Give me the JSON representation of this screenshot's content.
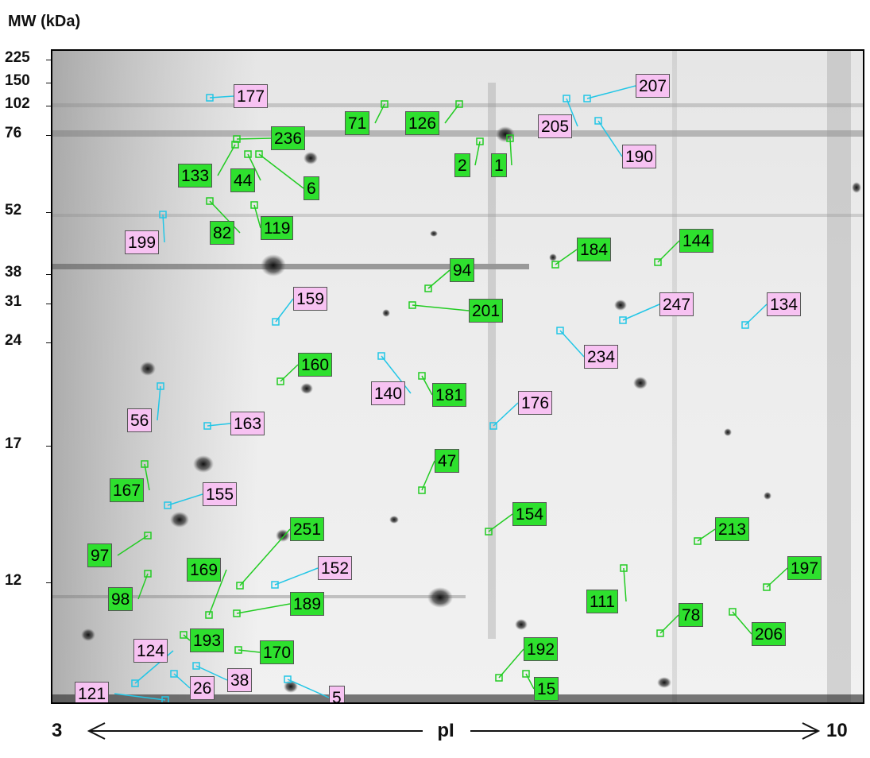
{
  "figure": {
    "y_axis_title": "MW (kDa)",
    "x_axis_title": "pI",
    "x_axis_left": "3",
    "x_axis_right": "10",
    "mw_markers": [
      "225",
      "150",
      "102",
      "76",
      "52",
      "38",
      "31",
      "24",
      "17",
      "12"
    ],
    "colors": {
      "green_label": "#2ee02e",
      "pink_label": "#f7c2f2",
      "green_line": "#22cc22",
      "cyan_line": "#22c6e6"
    },
    "spots": [
      {
        "id": "177",
        "color": "pink"
      },
      {
        "id": "71",
        "color": "green"
      },
      {
        "id": "126",
        "color": "green"
      },
      {
        "id": "207",
        "color": "pink"
      },
      {
        "id": "205",
        "color": "pink"
      },
      {
        "id": "190",
        "color": "pink"
      },
      {
        "id": "236",
        "color": "green"
      },
      {
        "id": "133",
        "color": "green"
      },
      {
        "id": "44",
        "color": "green"
      },
      {
        "id": "6",
        "color": "green"
      },
      {
        "id": "2",
        "color": "green"
      },
      {
        "id": "1",
        "color": "green"
      },
      {
        "id": "199",
        "color": "pink"
      },
      {
        "id": "82",
        "color": "green"
      },
      {
        "id": "119",
        "color": "green"
      },
      {
        "id": "184",
        "color": "green"
      },
      {
        "id": "144",
        "color": "green"
      },
      {
        "id": "94",
        "color": "green"
      },
      {
        "id": "201",
        "color": "green"
      },
      {
        "id": "159",
        "color": "pink"
      },
      {
        "id": "247",
        "color": "pink"
      },
      {
        "id": "134",
        "color": "pink"
      },
      {
        "id": "234",
        "color": "pink"
      },
      {
        "id": "160",
        "color": "green"
      },
      {
        "id": "140",
        "color": "pink"
      },
      {
        "id": "181",
        "color": "green"
      },
      {
        "id": "176",
        "color": "pink"
      },
      {
        "id": "56",
        "color": "pink"
      },
      {
        "id": "163",
        "color": "pink"
      },
      {
        "id": "47",
        "color": "green"
      },
      {
        "id": "167",
        "color": "green"
      },
      {
        "id": "155",
        "color": "pink"
      },
      {
        "id": "154",
        "color": "green"
      },
      {
        "id": "251",
        "color": "green"
      },
      {
        "id": "213",
        "color": "green"
      },
      {
        "id": "97",
        "color": "green"
      },
      {
        "id": "169",
        "color": "green"
      },
      {
        "id": "152",
        "color": "pink"
      },
      {
        "id": "197",
        "color": "green"
      },
      {
        "id": "98",
        "color": "green"
      },
      {
        "id": "111",
        "color": "green"
      },
      {
        "id": "189",
        "color": "green"
      },
      {
        "id": "78",
        "color": "green"
      },
      {
        "id": "206",
        "color": "green"
      },
      {
        "id": "193",
        "color": "green"
      },
      {
        "id": "170",
        "color": "green"
      },
      {
        "id": "124",
        "color": "pink"
      },
      {
        "id": "192",
        "color": "green"
      },
      {
        "id": "26",
        "color": "pink"
      },
      {
        "id": "38",
        "color": "pink"
      },
      {
        "id": "121",
        "color": "pink"
      },
      {
        "id": "5",
        "color": "pink"
      },
      {
        "id": "15",
        "color": "green"
      }
    ]
  }
}
